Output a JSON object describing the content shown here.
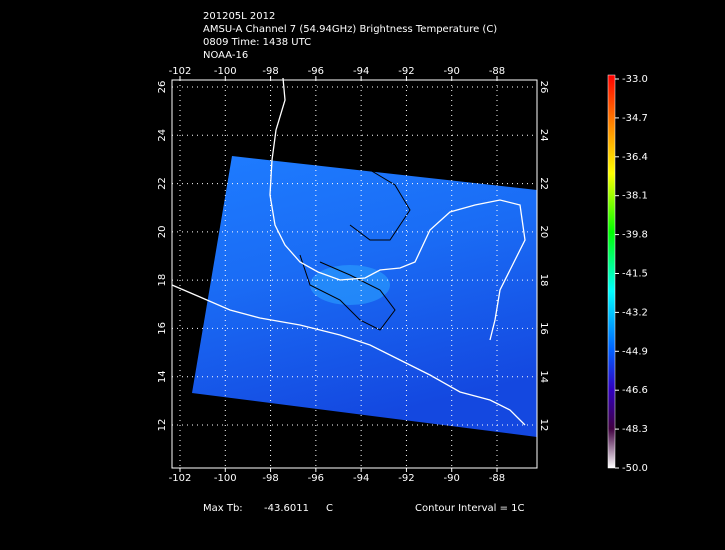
{
  "header": {
    "lines": [
      "201205L 2012",
      "AMSU-A Channel 7 (54.94GHz) Brightness Temperature (C)",
      "0809 Time: 1438 UTC",
      "NOAA-16"
    ]
  },
  "map": {
    "lon_ticks": [
      -102,
      -100,
      -98,
      -96,
      -94,
      -92,
      -90,
      -88
    ],
    "lat_ticks": [
      26,
      24,
      22,
      20,
      18,
      16,
      14,
      12
    ]
  },
  "colorbar": {
    "labels": [
      "-33.0",
      "-34.7",
      "-36.4",
      "-38.1",
      "-39.8",
      "-41.5",
      "-43.2",
      "-44.9",
      "-46.6",
      "-48.3",
      "-50.0"
    ]
  },
  "footer": {
    "max_label": "Max Tb:",
    "max_value": "-43.6011",
    "unit": "C",
    "contour": "Contour Interval = 1C"
  }
}
